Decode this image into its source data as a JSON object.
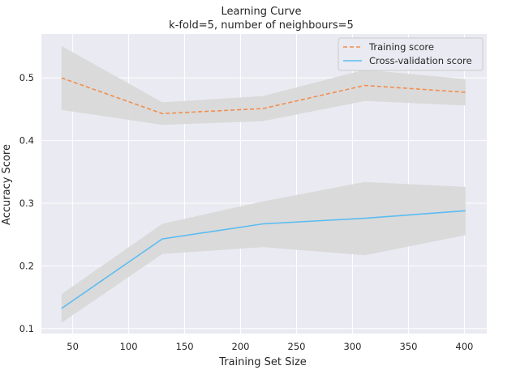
{
  "chart_data": {
    "type": "line",
    "title": "Learning Curve",
    "subtitle": "k-fold=5, number of neighbours=5",
    "xlabel": "Training Set Size",
    "ylabel": "Accuracy Score",
    "xlim": [
      22,
      420
    ],
    "ylim": [
      0.092,
      0.57
    ],
    "xticks": [
      50,
      100,
      150,
      200,
      250,
      300,
      350,
      400
    ],
    "yticks": [
      0.1,
      0.2,
      0.3,
      0.4,
      0.5
    ],
    "grid": true,
    "legend_position": "top-right",
    "x": [
      40,
      130,
      220,
      311,
      401
    ],
    "series": [
      {
        "name": "Training score",
        "style": "dashed",
        "color": "#f28e4c",
        "values": [
          0.5,
          0.443,
          0.451,
          0.488,
          0.477
        ],
        "band_upper": [
          0.551,
          0.461,
          0.471,
          0.513,
          0.498
        ],
        "band_lower": [
          0.449,
          0.425,
          0.431,
          0.463,
          0.456
        ]
      },
      {
        "name": "Cross-validation score",
        "style": "solid",
        "color": "#5bbcf0",
        "values": [
          0.132,
          0.243,
          0.267,
          0.276,
          0.288
        ],
        "band_upper": [
          0.155,
          0.267,
          0.303,
          0.334,
          0.326
        ],
        "band_lower": [
          0.109,
          0.219,
          0.23,
          0.217,
          0.249
        ]
      }
    ],
    "colors": {
      "plot_background": "#eaeaf2",
      "grid": "#ffffff",
      "band": "#d9d9d9"
    }
  }
}
